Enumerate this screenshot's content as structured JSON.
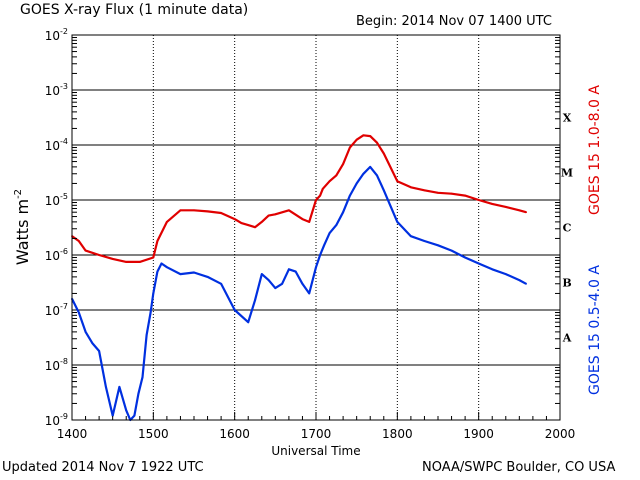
{
  "header": {
    "title": "GOES X-ray Flux (1 minute data)",
    "begin": "Begin: 2014 Nov 07 1400 UTC"
  },
  "footer": {
    "updated": "Updated 2014 Nov  7 1922 UTC",
    "credit": "NOAA/SWPC Boulder, CO USA"
  },
  "colors": {
    "long_channel": "#e00000",
    "short_channel": "#0030e0",
    "axis": "#000000"
  },
  "chart_data": {
    "type": "line",
    "title": "GOES X-ray Flux (1 minute data)",
    "xlabel": "Universal Time",
    "ylabel": "Watts m",
    "ylabel_superscript": "-2",
    "yscale": "log",
    "xlim": [
      1400,
      2000
    ],
    "ylim": [
      1e-09,
      0.01
    ],
    "grid": true,
    "x_ticks": [
      "1400",
      "1500",
      "1600",
      "1700",
      "1800",
      "1900",
      "2000"
    ],
    "y_ticks": [
      {
        "base": "10",
        "exp": "-9"
      },
      {
        "base": "10",
        "exp": "-8"
      },
      {
        "base": "10",
        "exp": "-7"
      },
      {
        "base": "10",
        "exp": "-6"
      },
      {
        "base": "10",
        "exp": "-5"
      },
      {
        "base": "10",
        "exp": "-4"
      },
      {
        "base": "10",
        "exp": "-3"
      },
      {
        "base": "10",
        "exp": "-2"
      }
    ],
    "flare_classes": [
      {
        "label": "A",
        "value": 1e-08
      },
      {
        "label": "B",
        "value": 1e-07
      },
      {
        "label": "C",
        "value": 1e-06
      },
      {
        "label": "M",
        "value": 1e-05
      },
      {
        "label": "X",
        "value": 0.0001
      }
    ],
    "series": [
      {
        "name": "GOES 15 1.0-8.0 A",
        "color": "#e00000",
        "x": [
          "1400",
          "1405",
          "1410",
          "1420",
          "1430",
          "1440",
          "1450",
          "1500",
          "1503",
          "1510",
          "1520",
          "1530",
          "1540",
          "1550",
          "1600",
          "1605",
          "1610",
          "1615",
          "1620",
          "1625",
          "1630",
          "1640",
          "1650",
          "1655",
          "1700",
          "1703",
          "1705",
          "1710",
          "1715",
          "1720",
          "1725",
          "1730",
          "1735",
          "1740",
          "1745",
          "1750",
          "1800",
          "1810",
          "1820",
          "1830",
          "1840",
          "1850",
          "1900",
          "1910",
          "1920",
          "1930",
          "1935"
        ],
        "y": [
          2.2e-06,
          1.8e-06,
          1.2e-06,
          1e-06,
          8.5e-07,
          7.5e-07,
          7.5e-07,
          9e-07,
          1.8e-06,
          4e-06,
          6.5e-06,
          6.5e-06,
          6.2e-06,
          5.8e-06,
          4.5e-06,
          3.8e-06,
          3.5e-06,
          3.2e-06,
          4e-06,
          5.2e-06,
          5.5e-06,
          6.5e-06,
          4.5e-06,
          4e-06,
          1e-05,
          1.2e-05,
          1.6e-05,
          2.2e-05,
          2.8e-05,
          4.5e-05,
          9e-05,
          0.000125,
          0.00015,
          0.000145,
          0.00011,
          7e-05,
          2.2e-05,
          1.7e-05,
          1.5e-05,
          1.35e-05,
          1.3e-05,
          1.2e-05,
          1e-05,
          8.5e-06,
          7.5e-06,
          6.5e-06,
          6e-06
        ]
      },
      {
        "name": "GOES 15 0.5-4.0 A",
        "color": "#0030e0",
        "x": [
          "1400",
          "1405",
          "1410",
          "1415",
          "1420",
          "1425",
          "1430",
          "1435",
          "1440",
          "1443",
          "1446",
          "1449",
          "1452",
          "1455",
          "1458",
          "1500",
          "1503",
          "1506",
          "1510",
          "1520",
          "1530",
          "1540",
          "1550",
          "1600",
          "1610",
          "1615",
          "1620",
          "1625",
          "1630",
          "1635",
          "1640",
          "1645",
          "1650",
          "1655",
          "1700",
          "1703",
          "1706",
          "1710",
          "1715",
          "1720",
          "1725",
          "1730",
          "1735",
          "1740",
          "1745",
          "1750",
          "1800",
          "1810",
          "1820",
          "1830",
          "1840",
          "1850",
          "1900",
          "1910",
          "1920",
          "1930",
          "1935"
        ],
        "y": [
          1.6e-07,
          9e-08,
          4e-08,
          2.5e-08,
          1.8e-08,
          4e-09,
          1.2e-09,
          4e-09,
          1.5e-09,
          1e-09,
          1.2e-09,
          3e-09,
          6e-09,
          3.5e-08,
          9e-08,
          2e-07,
          5e-07,
          7e-07,
          6e-07,
          4.5e-07,
          4.8e-07,
          4e-07,
          3e-07,
          1e-07,
          6e-08,
          1.5e-07,
          4.5e-07,
          3.5e-07,
          2.5e-07,
          3e-07,
          5.5e-07,
          5e-07,
          3e-07,
          2e-07,
          6e-07,
          1e-06,
          1.5e-06,
          2.5e-06,
          3.5e-06,
          6e-06,
          1.2e-05,
          2e-05,
          3e-05,
          4e-05,
          2.8e-05,
          1.5e-05,
          4e-06,
          2.2e-06,
          1.8e-06,
          1.5e-06,
          1.2e-06,
          9e-07,
          7e-07,
          5.5e-07,
          4.5e-07,
          3.5e-07,
          3e-07
        ]
      }
    ]
  }
}
